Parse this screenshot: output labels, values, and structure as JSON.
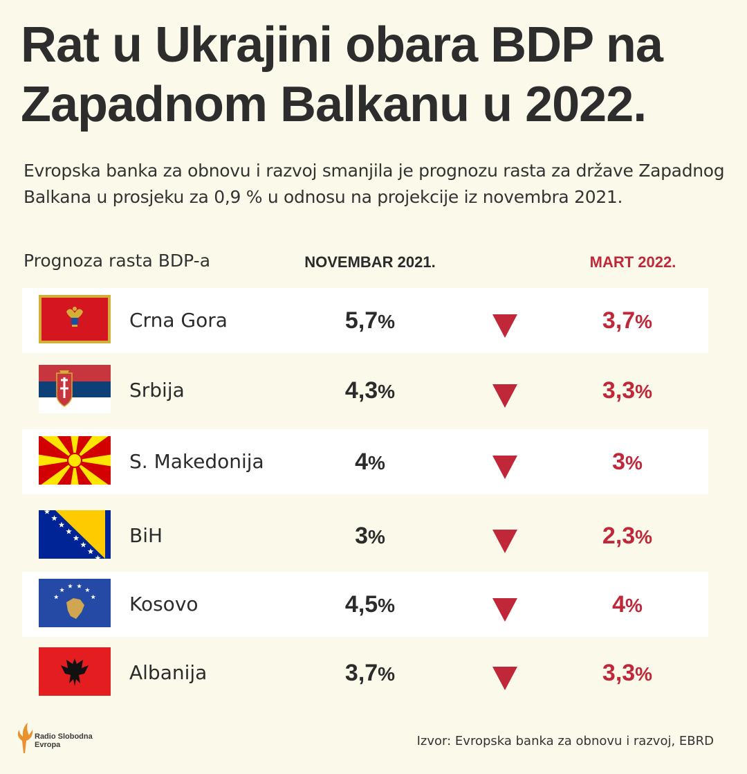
{
  "title": "Rat u Ukrajini obara BDP na Zapadnom Balkanu u 2022.",
  "subtitle": "Evropska banka za obnovu i razvoj smanjila je prognozu rasta za države Zapadnog Balkana u prosjeku za 0,9 % u odnosu na projekcije iz novembra 2021.",
  "header": {
    "label": "Prognoza rasta BDP-a",
    "col_november": "NOVEMBAR 2021.",
    "col_march": "MART 2022."
  },
  "colors": {
    "accent": "#c0283a",
    "background": "#fbfaea",
    "row_shade": "#ffffff",
    "text": "#2b2b2b"
  },
  "chart_data": {
    "type": "table",
    "columns": [
      "Prognoza rasta BDP-a",
      "NOVEMBAR 2021.",
      "MART 2022."
    ],
    "rows": [
      {
        "country": "Crna Gora",
        "flag": "montenegro-flag-icon",
        "november": "5,7",
        "march": "3,7"
      },
      {
        "country": "Srbija",
        "flag": "serbia-flag-icon",
        "november": "4,3",
        "march": "3,3"
      },
      {
        "country": "S. Makedonija",
        "flag": "north-macedonia-flag-icon",
        "november": "4",
        "march": "3"
      },
      {
        "country": "BiH",
        "flag": "bosnia-flag-icon",
        "november": "3",
        "march": "2,3"
      },
      {
        "country": "Kosovo",
        "flag": "kosovo-flag-icon",
        "november": "4,5",
        "march": "4"
      },
      {
        "country": "Albanija",
        "flag": "albania-flag-icon",
        "november": "3,7",
        "march": "3,3"
      }
    ],
    "unit": "%",
    "trend_icon": "down-triangle-icon"
  },
  "logo": {
    "icon": "rfe-flame-logo-icon",
    "text": "Radio Slobodna\nEvropa"
  },
  "source": "Izvor: Evropska banka za obnovu i razvoj, EBRD"
}
